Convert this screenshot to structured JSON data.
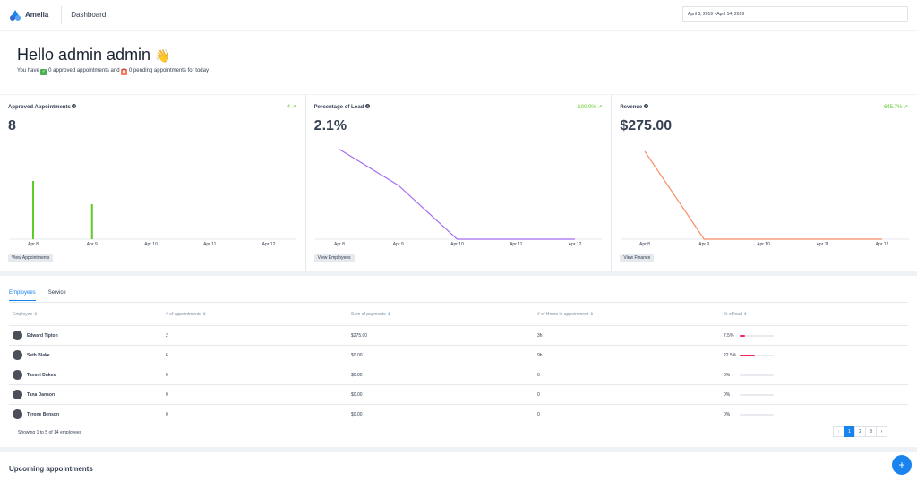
{
  "header": {
    "app_name": "Amelia",
    "page_title": "Dashboard",
    "date_range": "April 8, 2019 - April 14, 2019"
  },
  "greeting": {
    "title": "Hello admin admin",
    "wave": "👋",
    "you_have": "You have",
    "approved_text": "0 approved appointments and",
    "pending_text": "0 pending appointments for today"
  },
  "cards": [
    {
      "label": "Approved Appointments",
      "change": "4",
      "value": "8",
      "button": "View Appointments",
      "ticks": [
        "Apr 8",
        "Apr 9",
        "Apr 10",
        "Apr 11",
        "Apr 12"
      ]
    },
    {
      "label": "Percentage of Load",
      "change": "100.0%",
      "value": "2.1%",
      "button": "View Employees",
      "ticks": [
        "Apr 8",
        "Apr 9",
        "Apr 10",
        "Apr 11",
        "Apr 12"
      ]
    },
    {
      "label": "Revenue",
      "change": "645.7%",
      "value": "$275.00",
      "button": "View Finance",
      "ticks": [
        "Apr 8",
        "Apr 9",
        "Apr 10",
        "Apr 11",
        "Apr 12"
      ]
    }
  ],
  "chart_data": [
    {
      "type": "bar",
      "categories": [
        "Apr 8",
        "Apr 9",
        "Apr 10",
        "Apr 11",
        "Apr 12"
      ],
      "values": [
        5,
        3,
        0,
        0,
        0
      ],
      "ylim": [
        0,
        9
      ],
      "color": "#5fca22"
    },
    {
      "type": "line",
      "categories": [
        "Apr 8",
        "Apr 9",
        "Apr 10",
        "Apr 11",
        "Apr 12"
      ],
      "values": [
        7.5,
        4.5,
        0,
        0,
        0
      ],
      "ylim": [
        0,
        8
      ],
      "color": "#a56cf0"
    },
    {
      "type": "line",
      "categories": [
        "Apr 8",
        "Apr 9",
        "Apr 10",
        "Apr 11",
        "Apr 12"
      ],
      "values": [
        275,
        0,
        0,
        0,
        0
      ],
      "ylim": [
        0,
        300
      ],
      "color": "#f88a67"
    }
  ],
  "tabs": [
    "Employees",
    "Service"
  ],
  "table": {
    "columns": [
      "Employee",
      "# of appointments",
      "Sum of payments",
      "# of Hours in appointment",
      "% of load"
    ],
    "rows": [
      {
        "name": "Edward Tipton",
        "appointments": "2",
        "payments": "$275.00",
        "hours": "3h",
        "load": "7.5%",
        "load_value": 7.5
      },
      {
        "name": "Seth Blake",
        "appointments": "6",
        "payments": "$0.00",
        "hours": "9h",
        "load": "22.5%",
        "load_value": 22.5
      },
      {
        "name": "Tammi Dukes",
        "appointments": "0",
        "payments": "$0.00",
        "hours": "0",
        "load": "0%",
        "load_value": 0
      },
      {
        "name": "Tana Danson",
        "appointments": "0",
        "payments": "$0.00",
        "hours": "0",
        "load": "0%",
        "load_value": 0
      },
      {
        "name": "Tyrone Benson",
        "appointments": "0",
        "payments": "$0.00",
        "hours": "0",
        "load": "0%",
        "load_value": 0
      }
    ],
    "footer": "Showing 1 to 5 of 14 employees"
  },
  "pagination": {
    "prev": "‹",
    "pages": [
      "1",
      "2",
      "3"
    ],
    "next": "›"
  },
  "upcoming": {
    "title": "Upcoming appointments"
  },
  "fab": "+"
}
